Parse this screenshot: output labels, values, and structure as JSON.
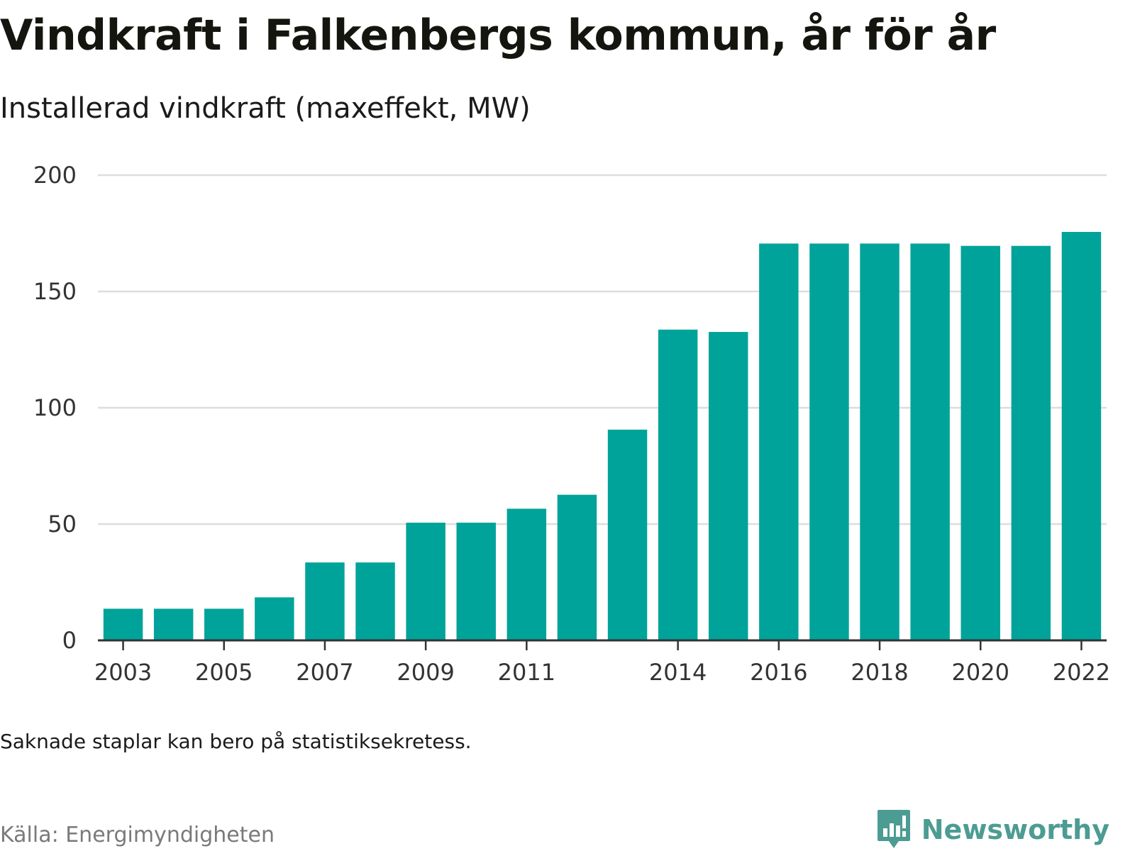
{
  "header": {
    "title": "Vindkraft i Falkenbergs kommun, år för år",
    "subtitle": "Installerad vindkraft (maxeffekt, MW)"
  },
  "chart_data": {
    "type": "bar",
    "title": "Vindkraft i Falkenbergs kommun, år för år",
    "subtitle": "Installerad vindkraft (maxeffekt, MW)",
    "xlabel": "",
    "ylabel": "",
    "categories": [
      "2003",
      "2004",
      "2005",
      "2006",
      "2007",
      "2008",
      "2009",
      "2010",
      "2011",
      "2012",
      "2013",
      "2014",
      "2015",
      "2016",
      "2017",
      "2018",
      "2019",
      "2020",
      "2021",
      "2022"
    ],
    "values": [
      13.6,
      13.6,
      13.6,
      18.5,
      33.5,
      33.5,
      50.6,
      50.6,
      56.6,
      62.6,
      90.6,
      133.6,
      132.6,
      170.6,
      170.6,
      170.6,
      170.6,
      169.6,
      169.6,
      175.6
    ],
    "x_tick_labels": [
      "2003",
      "2005",
      "2007",
      "2009",
      "2011",
      "2014",
      "2016",
      "2018",
      "2020",
      "2022"
    ],
    "y_ticks": [
      0,
      50,
      100,
      150,
      200
    ],
    "ylim": [
      0,
      200
    ],
    "grid": true,
    "bar_color": "#00a39a",
    "grid_color": "#dddddd",
    "axis_color": "#333333"
  },
  "footer": {
    "note": "Saknade staplar kan bero på statistiksekretess.",
    "source": "Källa: Energimyndigheten",
    "brand_name": "Newsworthy",
    "brand_icon": "bar-chart-speech-bubble-icon",
    "brand_color": "#4c9c93"
  }
}
